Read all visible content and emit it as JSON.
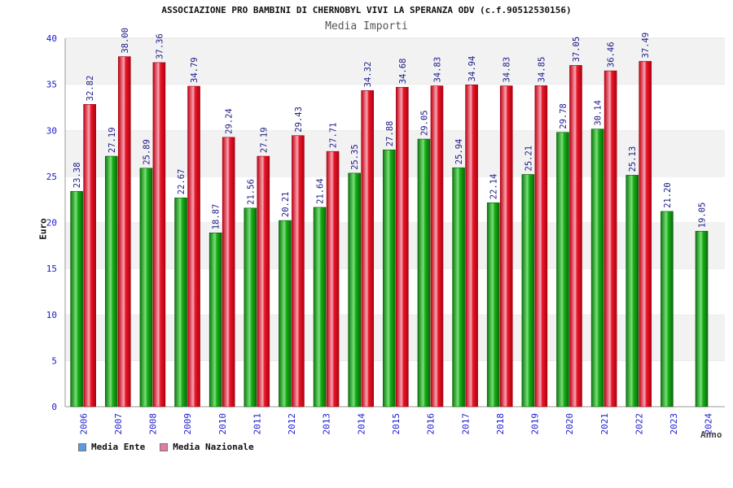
{
  "chart_data": {
    "type": "bar",
    "title": "ASSOCIAZIONE PRO BAMBINI DI CHERNOBYL VIVI LA SPERANZA ODV (c.f.90512530156)",
    "subtitle": "Media Importi",
    "xlabel": "Anno",
    "ylabel": "Euro",
    "ylim": [
      0,
      40
    ],
    "yticks": [
      "0",
      "5",
      "10",
      "15",
      "20",
      "25",
      "30",
      "35",
      "40"
    ],
    "grid": "horizontal bands",
    "legend_position": "bottom-left",
    "categories": [
      "2006",
      "2007",
      "2008",
      "2009",
      "2010",
      "2011",
      "2012",
      "2013",
      "2014",
      "2015",
      "2016",
      "2017",
      "2018",
      "2019",
      "2020",
      "2021",
      "2022",
      "2023",
      "2024"
    ],
    "series": [
      {
        "name": "Media Ente",
        "legend_color": "#5B9BE0",
        "bar_color": "#10A010",
        "values": [
          23.38,
          27.19,
          25.89,
          22.67,
          18.87,
          21.56,
          20.21,
          21.64,
          25.35,
          27.88,
          29.05,
          25.94,
          22.14,
          25.21,
          29.78,
          30.14,
          25.13,
          21.2,
          19.05
        ],
        "labels": [
          "23.38",
          "27.19",
          "25.89",
          "22.67",
          "18.87",
          "21.56",
          "20.21",
          "21.64",
          "25.35",
          "27.88",
          "29.05",
          "25.94",
          "22.14",
          "25.21",
          "29.78",
          "30.14",
          "25.13",
          "21.20",
          "19.05"
        ]
      },
      {
        "name": "Media Nazionale",
        "legend_color": "#E07AA6",
        "bar_color": "#E01020",
        "values": [
          32.82,
          38.0,
          37.36,
          34.79,
          29.24,
          27.19,
          29.43,
          27.71,
          34.32,
          34.68,
          34.83,
          34.94,
          34.83,
          34.85,
          37.05,
          36.46,
          37.49,
          null,
          null
        ],
        "labels": [
          "32.82",
          "38.00",
          "37.36",
          "34.79",
          "29.24",
          "27.19",
          "29.43",
          "27.71",
          "34.32",
          "34.68",
          "34.83",
          "34.94",
          "34.83",
          "34.85",
          "37.05",
          "36.46",
          "37.49",
          "",
          ""
        ]
      }
    ]
  }
}
